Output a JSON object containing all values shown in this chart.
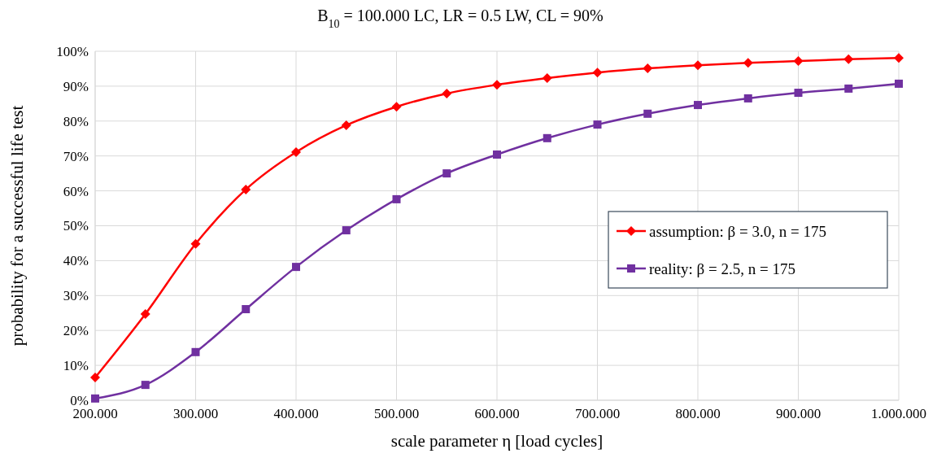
{
  "chart_data": {
    "type": "line",
    "title": "B$_{10}$ = 100.000 LC, LR = 0.5 LW, CL = 90%",
    "xlabel": "scale parameter η [load cycles]",
    "ylabel": "probability for a successful life test",
    "categories": [
      "200.000",
      null,
      "300.000",
      null,
      "400.000",
      null,
      "500.000",
      null,
      "600.000",
      null,
      "700.000",
      null,
      "800.000",
      null,
      "900.000",
      null,
      "1.000.000"
    ],
    "series": [
      {
        "name": "assumption: β = 3.0, n = 175",
        "color": "#ff0000",
        "marker": "diamond",
        "values": [
          6.5,
          24.7,
          44.8,
          60.4,
          71.1,
          78.8,
          84.1,
          87.9,
          90.4,
          92.3,
          93.9,
          95.1,
          96.0,
          96.7,
          97.2,
          97.7,
          98.1
        ]
      },
      {
        "name": "reality: β = 2.5, n = 175",
        "color": "#7030a0",
        "marker": "square",
        "values": [
          0.5,
          4.4,
          13.8,
          26.1,
          38.2,
          48.7,
          57.6,
          65.0,
          70.4,
          75.1,
          79.0,
          82.1,
          84.6,
          86.5,
          88.1,
          89.3,
          90.7
        ]
      }
    ],
    "ylim": [
      0,
      100
    ],
    "yticks": [
      {
        "value": 0,
        "label": "0%"
      },
      {
        "value": 10,
        "label": "10%"
      },
      {
        "value": 20,
        "label": "20%"
      },
      {
        "value": 30,
        "label": "30%"
      },
      {
        "value": 40,
        "label": "40%"
      },
      {
        "value": 50,
        "label": "50%"
      },
      {
        "value": 60,
        "label": "60%"
      },
      {
        "value": 70,
        "label": "70%"
      },
      {
        "value": 80,
        "label": "80%"
      },
      {
        "value": 90,
        "label": "90%"
      },
      {
        "value": 100,
        "label": "100%"
      }
    ],
    "grid": true,
    "legend": "right",
    "line_style": "solid"
  }
}
